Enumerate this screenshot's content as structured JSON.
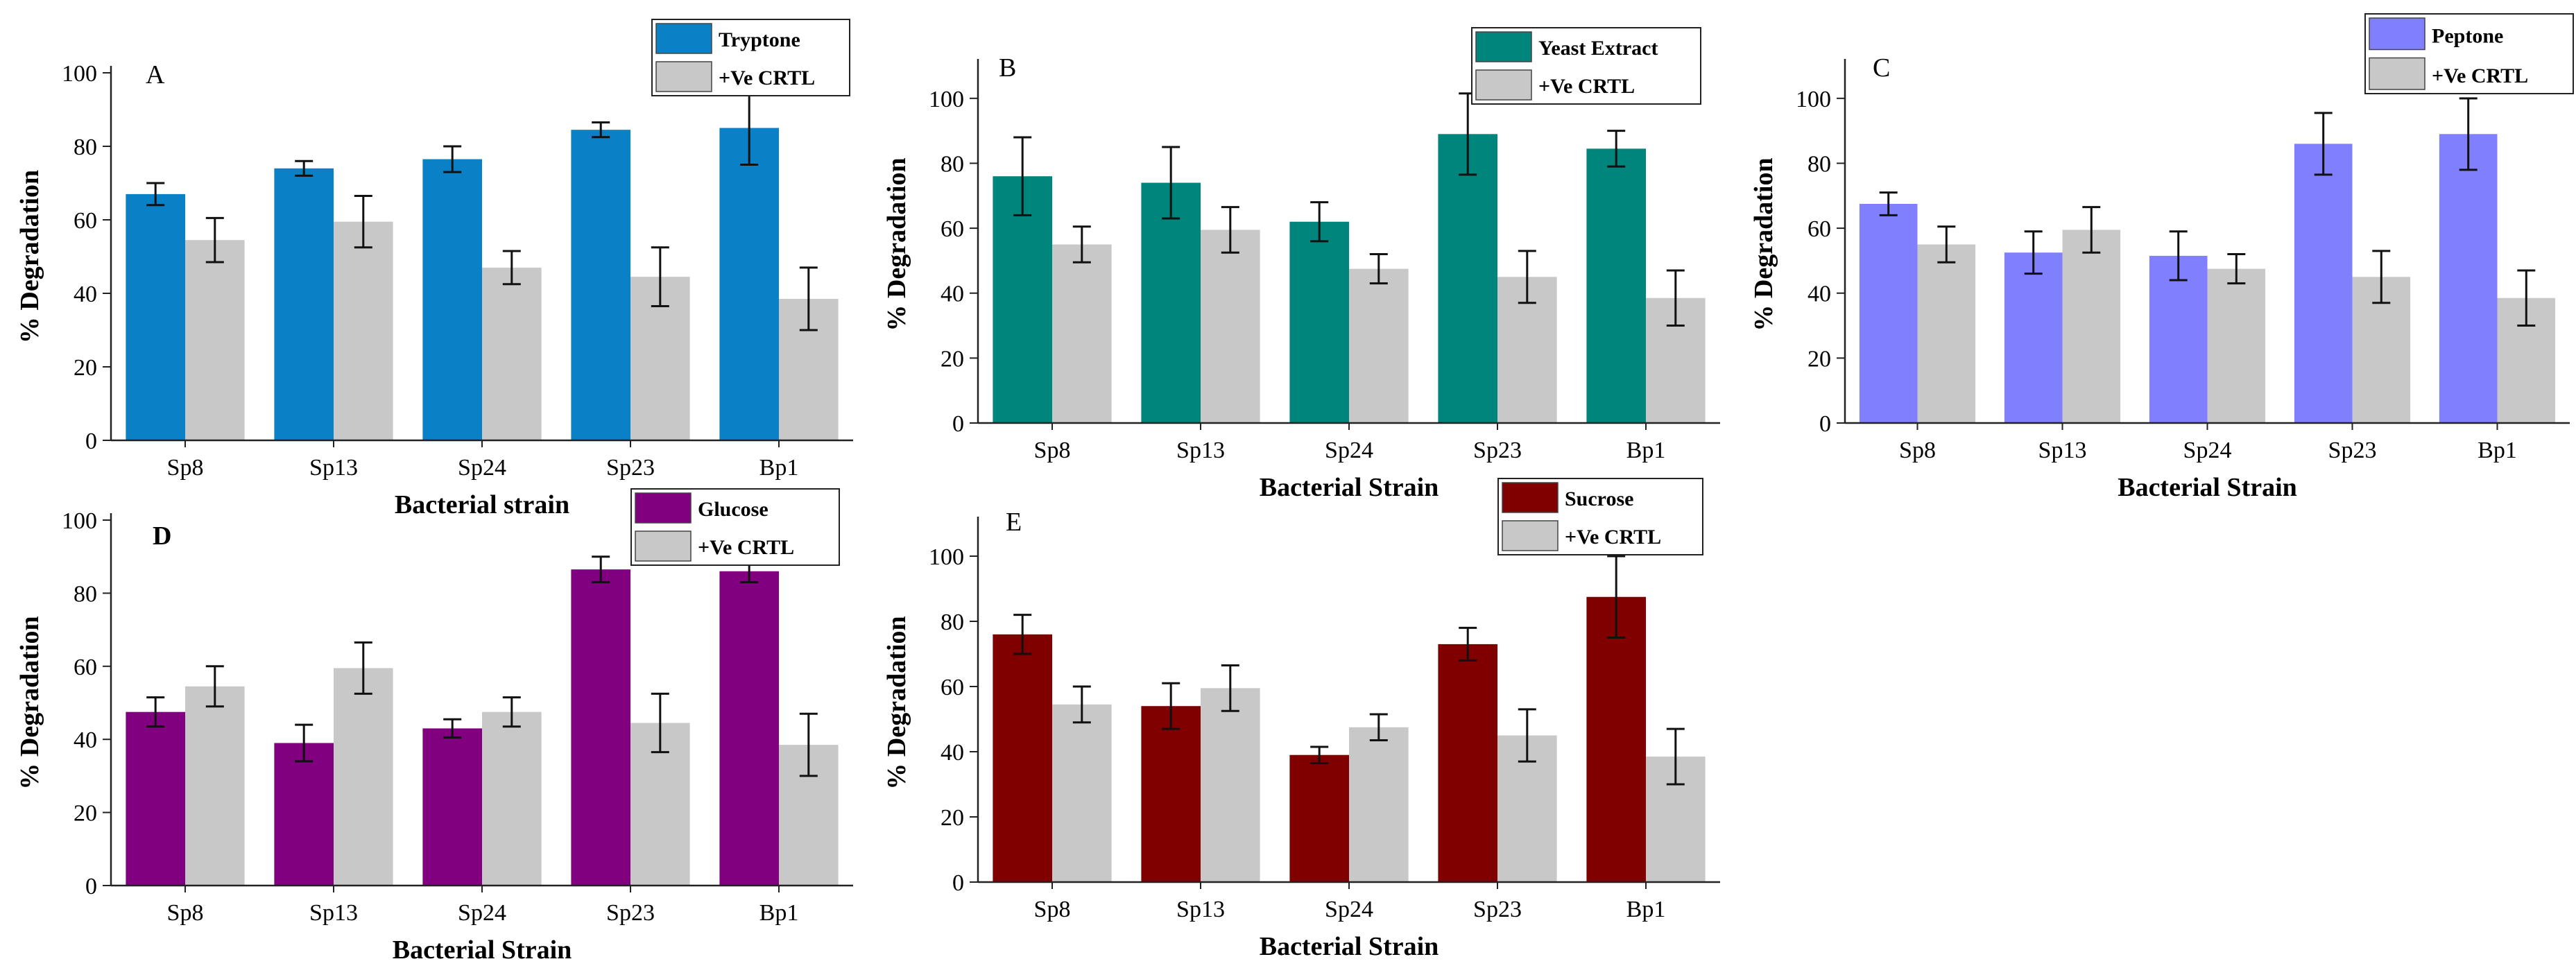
{
  "colors": {
    "control": "#c8c8c8",
    "tryptone": "#0a80c6",
    "yeast_extract": "#00857d",
    "peptone": "#8080ff",
    "glucose": "#800080",
    "sucrose": "#800000"
  },
  "chart_data": [
    {
      "type": "bar",
      "panel_label": "A",
      "xlabel": "Bacterial strain",
      "ylabel": "% Degradation",
      "ylim": [
        0,
        100
      ],
      "yticks": [
        0,
        20,
        40,
        60,
        80,
        100
      ],
      "categories": [
        "Sp8",
        "Sp13",
        "Sp24",
        "Sp23",
        "Bp1"
      ],
      "legend_position": "top-right",
      "series": [
        {
          "name": "Tryptone",
          "color": "#0a80c6",
          "values": [
            67,
            74,
            76.5,
            84.5,
            85
          ],
          "errors": [
            3,
            2,
            3.5,
            2,
            10
          ]
        },
        {
          "name": "+Ve CRTL",
          "color": "#c8c8c8",
          "values": [
            54.5,
            59.5,
            47,
            44.5,
            38.5
          ],
          "errors": [
            6,
            7,
            4.5,
            8,
            8.5
          ]
        }
      ]
    },
    {
      "type": "bar",
      "panel_label": "B",
      "xlabel": "Bacterial Strain",
      "ylabel": "% Degradation",
      "ylim": [
        0,
        110
      ],
      "yticks": [
        0,
        20,
        40,
        60,
        80,
        100
      ],
      "categories": [
        "Sp8",
        "Sp13",
        "Sp24",
        "Sp23",
        "Bp1"
      ],
      "legend_position": "top-right",
      "series": [
        {
          "name": "Yeast Extract",
          "color": "#00857d",
          "values": [
            76,
            74,
            62,
            89,
            84.5
          ],
          "errors": [
            12,
            11,
            6,
            12.5,
            5.5
          ]
        },
        {
          "name": "+Ve CRTL",
          "color": "#c8c8c8",
          "values": [
            55,
            59.5,
            47.5,
            45,
            38.5
          ],
          "errors": [
            5.5,
            7,
            4.5,
            8,
            8.5
          ]
        }
      ]
    },
    {
      "type": "bar",
      "panel_label": "C",
      "xlabel": "Bacterial Strain",
      "ylabel": "% Degradation",
      "ylim": [
        0,
        110
      ],
      "yticks": [
        0,
        20,
        40,
        60,
        80,
        100
      ],
      "categories": [
        "Sp8",
        "Sp13",
        "Sp24",
        "Sp23",
        "Bp1"
      ],
      "legend_position": "top-right",
      "series": [
        {
          "name": "Peptone",
          "color": "#8080ff",
          "values": [
            67.5,
            52.5,
            51.5,
            86,
            89
          ],
          "errors": [
            3.5,
            6.5,
            7.5,
            9.5,
            11
          ]
        },
        {
          "name": "+Ve CRTL",
          "color": "#c8c8c8",
          "values": [
            55,
            59.5,
            47.5,
            45,
            38.5
          ],
          "errors": [
            5.5,
            7,
            4.5,
            8,
            8.5
          ]
        }
      ]
    },
    {
      "type": "bar",
      "panel_label": "D",
      "xlabel": "Bacterial Strain",
      "ylabel": "% Degradation",
      "ylim": [
        0,
        100
      ],
      "yticks": [
        0,
        20,
        40,
        60,
        80,
        100
      ],
      "categories": [
        "Sp8",
        "Sp13",
        "Sp24",
        "Sp23",
        "Bp1"
      ],
      "legend_position": "top-right",
      "series": [
        {
          "name": "Glucose",
          "color": "#800080",
          "values": [
            47.5,
            39,
            43,
            86.5,
            86
          ],
          "errors": [
            4,
            5,
            2.5,
            3.5,
            3
          ]
        },
        {
          "name": "+Ve CRTL",
          "color": "#c8c8c8",
          "values": [
            54.5,
            59.5,
            47.5,
            44.5,
            38.5
          ],
          "errors": [
            5.5,
            7,
            4,
            8,
            8.5
          ]
        }
      ]
    },
    {
      "type": "bar",
      "panel_label": "E",
      "xlabel": "Bacterial Strain",
      "ylabel": "% Degradation",
      "ylim": [
        0,
        110
      ],
      "yticks": [
        0,
        20,
        40,
        60,
        80,
        100
      ],
      "categories": [
        "Sp8",
        "Sp13",
        "Sp24",
        "Sp23",
        "Bp1"
      ],
      "legend_position": "top-right",
      "series": [
        {
          "name": "Sucrose",
          "color": "#800000",
          "values": [
            76,
            54,
            39,
            73,
            87.5
          ],
          "errors": [
            6,
            7,
            2.5,
            5,
            12.5
          ]
        },
        {
          "name": "+Ve CRTL",
          "color": "#c8c8c8",
          "values": [
            54.5,
            59.5,
            47.5,
            45,
            38.5
          ],
          "errors": [
            5.5,
            7,
            4,
            8,
            8.5
          ]
        }
      ]
    }
  ]
}
